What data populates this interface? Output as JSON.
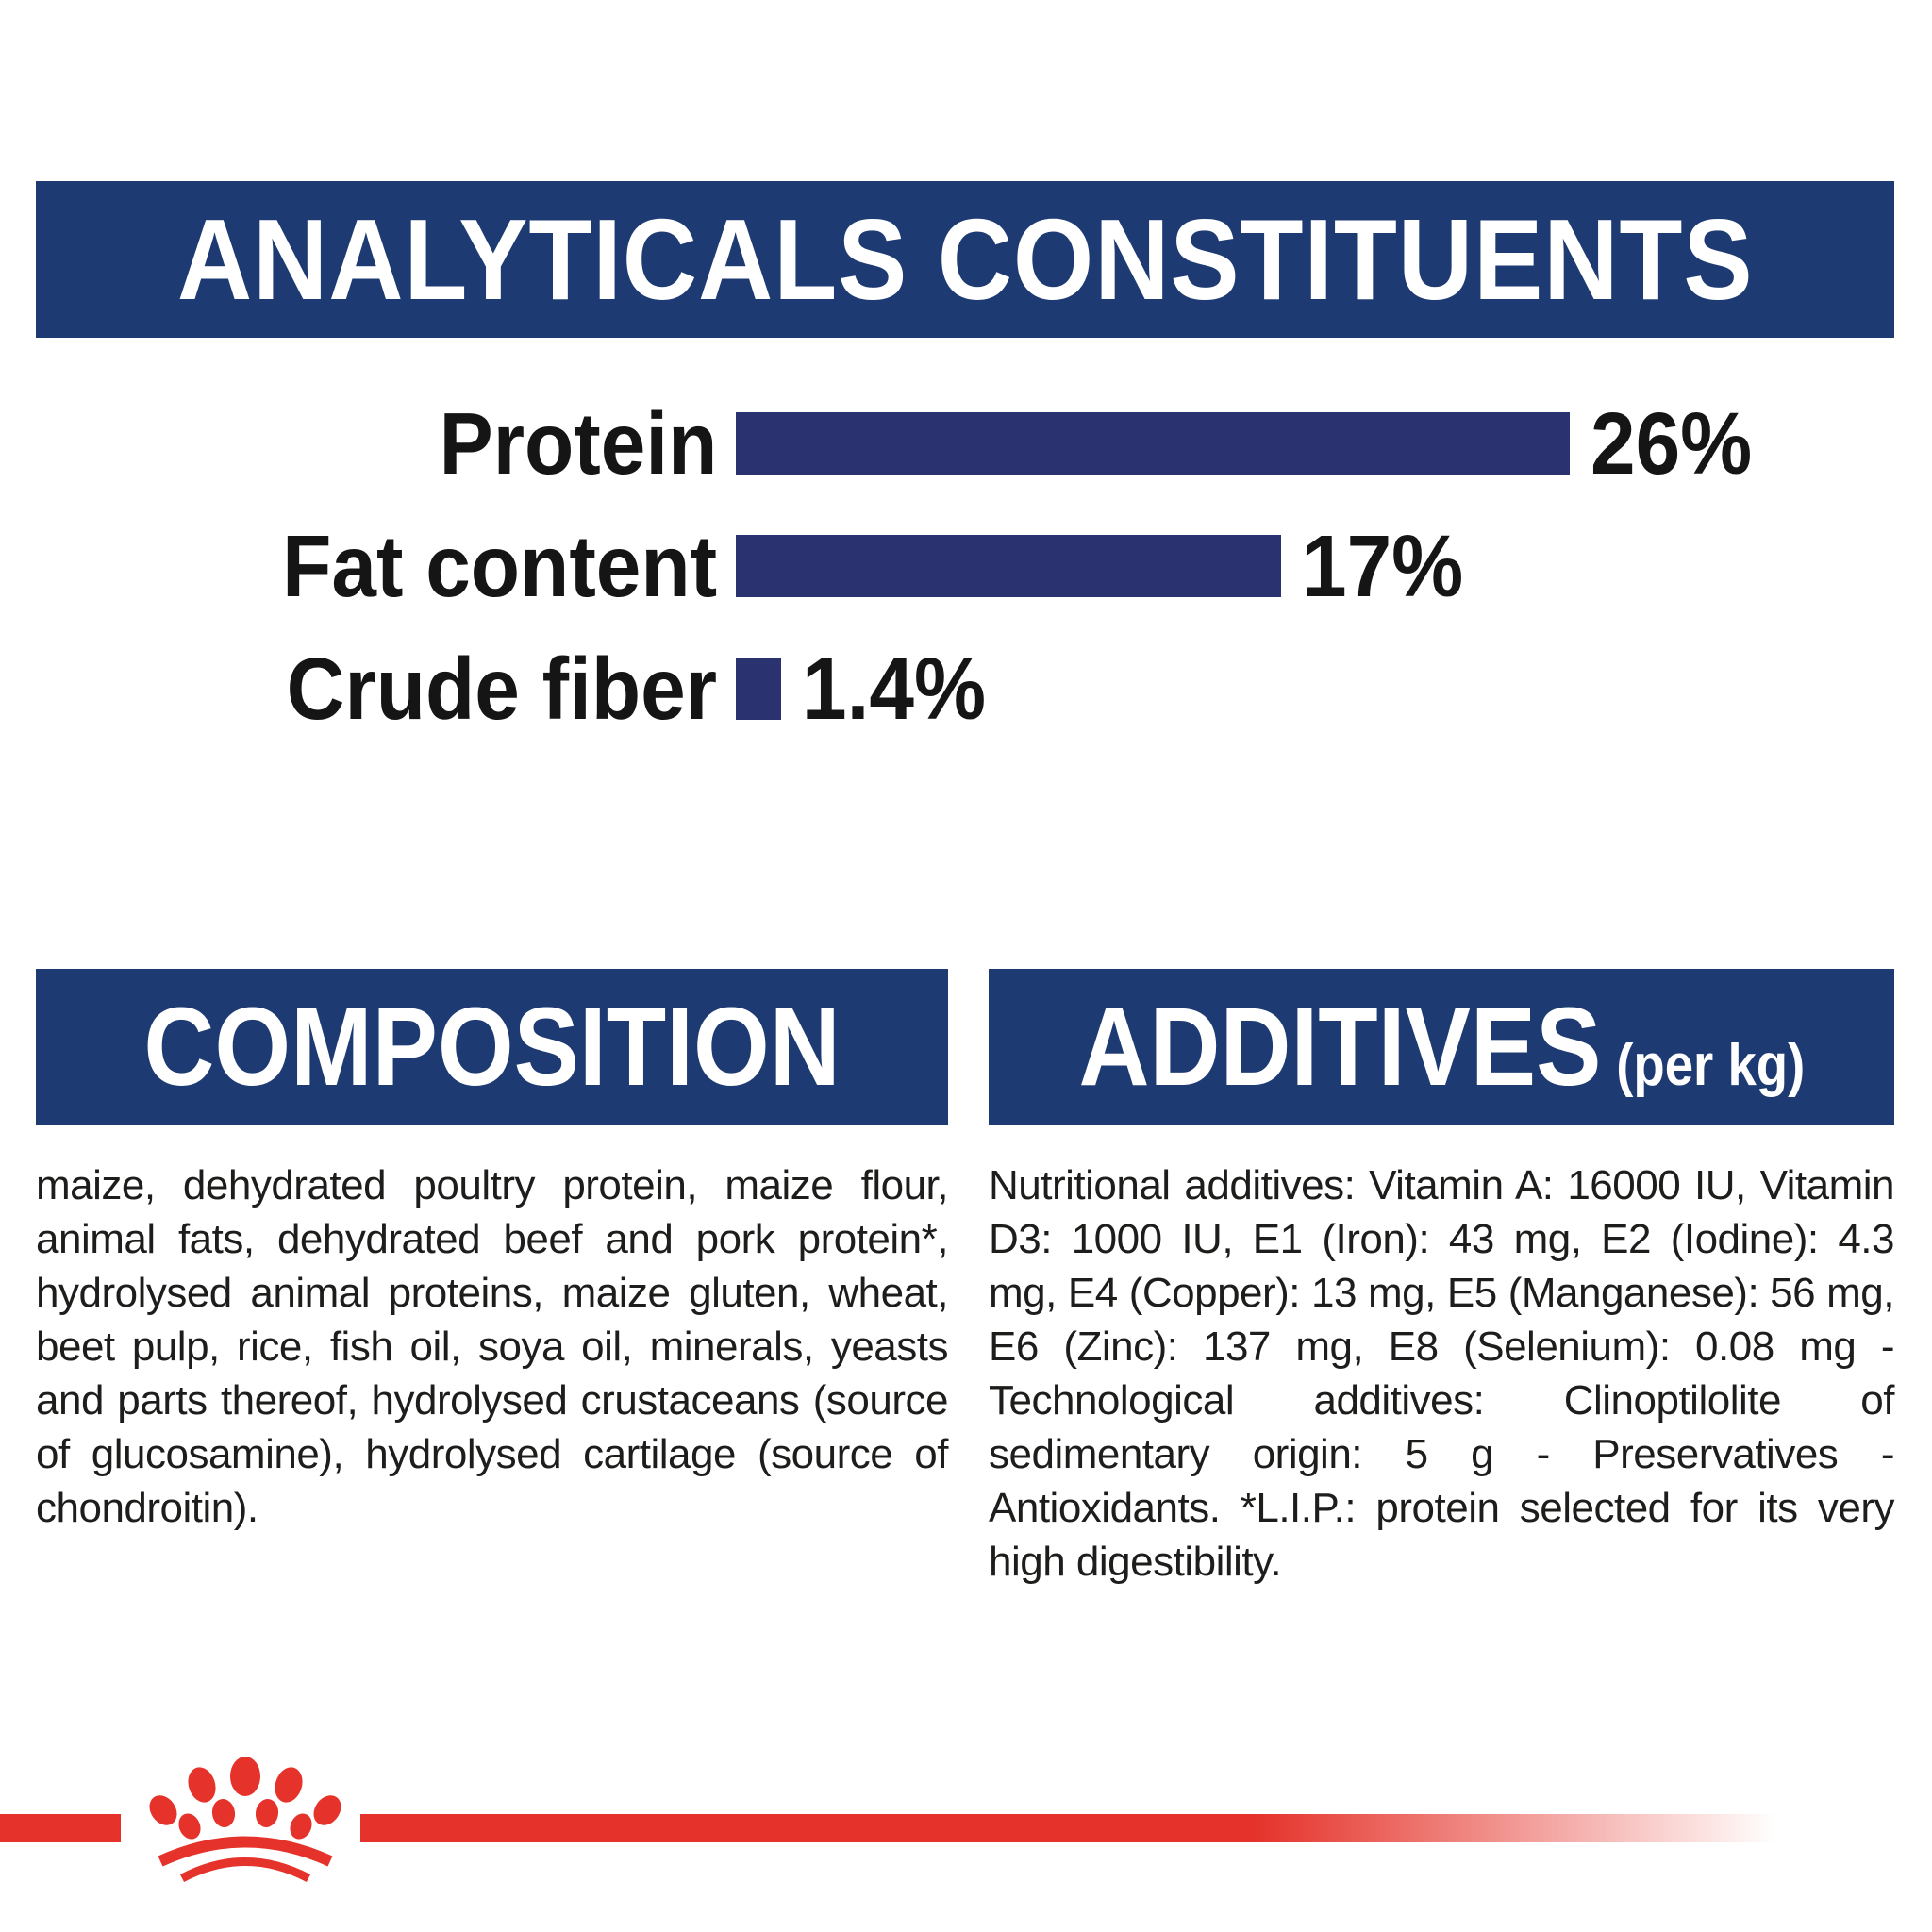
{
  "colors": {
    "header_blue": "#1d3b72",
    "bar_navy": "#2a336f",
    "brand_red": "#e5332b",
    "text_black": "#1d1d1b",
    "background": "#ffffff"
  },
  "banner": {
    "title": "ANALYTICALS CONSTITUENTS"
  },
  "chart_data": {
    "type": "bar",
    "orientation": "horizontal",
    "title": "ANALYTICALS CONSTITUENTS",
    "categories": [
      "Protein",
      "Fat content",
      "Crude fiber"
    ],
    "values": [
      26,
      17,
      1.4
    ],
    "value_labels": [
      "26%",
      "17%",
      "1.4%"
    ],
    "unit": "%",
    "xlim": [
      0,
      30
    ],
    "bar_color": "#2a336f",
    "grid": false,
    "legend": false
  },
  "composition": {
    "title": "COMPOSITION",
    "body": "maize, dehydrated poultry protein, maize flour, animal fats, dehydrated beef and pork protein*, hydrolysed animal proteins, maize gluten, wheat, beet pulp, rice, fish oil, soya oil, minerals, yeasts and parts thereof, hydrolysed crustaceans (source of glucosamine), hydrolysed cartilage (source of chondroitin)."
  },
  "additives": {
    "title": "ADDITIVES",
    "title_suffix": "(per kg)",
    "body": "Nutritional additives: Vitamin A: 16000 IU, Vitamin D3: 1000 IU, E1 (Iron): 43 mg, E2 (Iodine): 4.3 mg, E4 (Copper): 13 mg, E5 (Manganese): 56 mg, E6 (Zinc): 137 mg, E8 (Selenium): 0.08 mg - Technological additives: Clinoptilolite of sedimentary origin: 5 g - Preservatives - Antioxidants. *L.I.P.: protein selected for its very high digestibility."
  },
  "footer": {
    "brand_icon": "royal-canin-crown-icon"
  }
}
